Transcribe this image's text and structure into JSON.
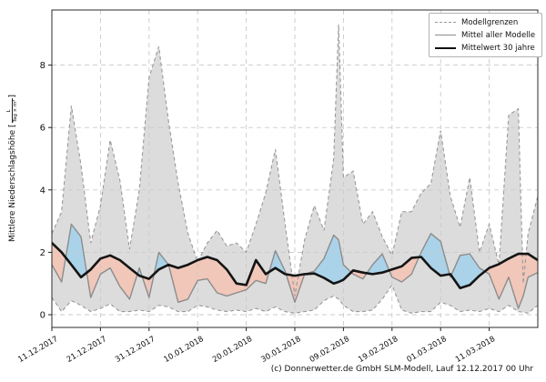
{
  "figure": {
    "footer": "(c) Donnerwetter.de GmbH SLM-Modell, Lauf 12.12.2017 00 Uhr"
  },
  "legend": {
    "items": [
      {
        "label": "Modellgrenzen",
        "line": "dashed",
        "color": "#999999"
      },
      {
        "label": "Mittel aller Modelle",
        "line": "solid",
        "color": "#8c8c8c"
      },
      {
        "label": "Mittelwert 30 jahre",
        "line": "thick",
        "color": "#111111"
      }
    ]
  },
  "axes": {
    "ylabel_prefix": "Mittlere Niederschlagshöhe [",
    "ylabel_frac_num": "L",
    "ylabel_frac_den": "Tag × m²",
    "ylabel_suffix": "]",
    "yticks": [
      0,
      2,
      4,
      6,
      8
    ],
    "xtick_dates": [
      "11.12.2017",
      "21.12.2017",
      "31.12.2017",
      "10.01.2018",
      "20.01.2018",
      "30.01.2018",
      "09.02.2018",
      "19.02.2018",
      "01.03.2018",
      "11.03.2018"
    ],
    "xtick_days": [
      0,
      10,
      20,
      30,
      40,
      50,
      60,
      70,
      80,
      90
    ]
  },
  "chart_data": {
    "type": "line",
    "title": "",
    "xlabel": "",
    "ylabel": "Mittlere Niederschlagshöhe [L/(Tag × m²)]",
    "x_unit": "days since 11.12.2017",
    "x_range_days": [
      0,
      100
    ],
    "ylim": [
      -0.4,
      9.8
    ],
    "yticks": [
      0,
      2,
      4,
      6,
      8
    ],
    "grid": true,
    "legend_position": "upper right",
    "x_days": [
      0,
      2,
      4,
      6,
      8,
      10,
      12,
      14,
      16,
      18,
      20,
      22,
      24,
      26,
      28,
      30,
      32,
      34,
      36,
      38,
      40,
      42,
      44,
      46,
      48,
      50,
      52,
      54,
      56,
      58,
      59,
      60,
      62,
      64,
      66,
      68,
      70,
      72,
      74,
      76,
      78,
      80,
      82,
      84,
      86,
      88,
      90,
      92,
      94,
      96,
      97,
      98,
      100
    ],
    "series": [
      {
        "name": "Modellgrenzen (obere Grenze)",
        "role": "upper_bound",
        "line": "dashed",
        "color": "#999999",
        "values": [
          2.6,
          3.3,
          6.7,
          4.8,
          2.3,
          3.5,
          5.6,
          4.3,
          2.1,
          4.0,
          7.6,
          8.6,
          6.2,
          4.2,
          2.6,
          1.7,
          2.3,
          2.7,
          2.2,
          2.3,
          2.0,
          2.9,
          3.9,
          5.3,
          2.9,
          0.6,
          2.4,
          3.5,
          2.7,
          5.0,
          9.3,
          4.4,
          4.6,
          2.9,
          3.3,
          2.5,
          1.9,
          3.3,
          3.3,
          3.9,
          4.2,
          5.9,
          3.8,
          2.8,
          4.4,
          2.0,
          2.9,
          1.6,
          6.4,
          6.6,
          1.0,
          2.6,
          3.8
        ]
      },
      {
        "name": "Modellgrenzen (untere Grenze)",
        "role": "lower_bound",
        "line": "dashed",
        "color": "#999999",
        "values": [
          0.55,
          0.1,
          0.45,
          0.3,
          0.1,
          0.2,
          0.35,
          0.1,
          0.1,
          0.15,
          0.1,
          0.3,
          0.25,
          0.1,
          0.1,
          0.3,
          0.25,
          0.15,
          0.1,
          0.15,
          0.1,
          0.2,
          0.1,
          0.25,
          0.1,
          0.05,
          0.1,
          0.15,
          0.45,
          0.6,
          0.5,
          0.3,
          0.1,
          0.1,
          0.15,
          0.5,
          0.95,
          0.15,
          0.05,
          0.1,
          0.1,
          0.4,
          0.3,
          0.1,
          0.15,
          0.1,
          0.2,
          0.1,
          0.3,
          0.1,
          0.08,
          0.05,
          0.3
        ]
      },
      {
        "name": "Mittel aller Modelle",
        "role": "model_mean",
        "line": "solid",
        "color": "#8c8c8c",
        "values": [
          1.6,
          1.05,
          2.9,
          2.5,
          0.55,
          1.3,
          1.5,
          0.9,
          0.5,
          1.5,
          0.55,
          2.0,
          1.6,
          0.4,
          0.5,
          1.1,
          1.15,
          0.7,
          0.6,
          0.7,
          0.8,
          1.1,
          1.0,
          2.05,
          1.4,
          0.4,
          1.3,
          1.4,
          1.8,
          2.55,
          2.4,
          1.6,
          1.3,
          1.15,
          1.6,
          1.95,
          1.2,
          1.05,
          1.3,
          2.0,
          2.6,
          2.35,
          1.2,
          1.9,
          1.95,
          1.5,
          1.3,
          0.5,
          1.2,
          0.2,
          0.6,
          1.2,
          1.35
        ]
      },
      {
        "name": "Mittelwert 30 jahre",
        "role": "climate_mean",
        "line": "solid",
        "color": "#141414",
        "values": [
          2.3,
          2.0,
          1.6,
          1.2,
          1.45,
          1.8,
          1.9,
          1.75,
          1.5,
          1.25,
          1.15,
          1.45,
          1.6,
          1.5,
          1.6,
          1.75,
          1.85,
          1.75,
          1.45,
          1.0,
          0.95,
          1.75,
          1.3,
          1.5,
          1.3,
          1.25,
          1.3,
          1.32,
          1.18,
          1.0,
          1.05,
          1.12,
          1.42,
          1.35,
          1.3,
          1.35,
          1.45,
          1.55,
          1.82,
          1.85,
          1.5,
          1.25,
          1.3,
          0.85,
          0.95,
          1.25,
          1.5,
          1.62,
          1.8,
          1.95,
          1.95,
          1.95,
          1.75
        ]
      }
    ],
    "fills": {
      "band": "#dcdcdc",
      "mean_above_climate": "#aad3e9",
      "mean_below_climate": "#f1c7ba"
    },
    "grid_color": "#c9c9c9",
    "frame_color": "#2b2b2b"
  }
}
